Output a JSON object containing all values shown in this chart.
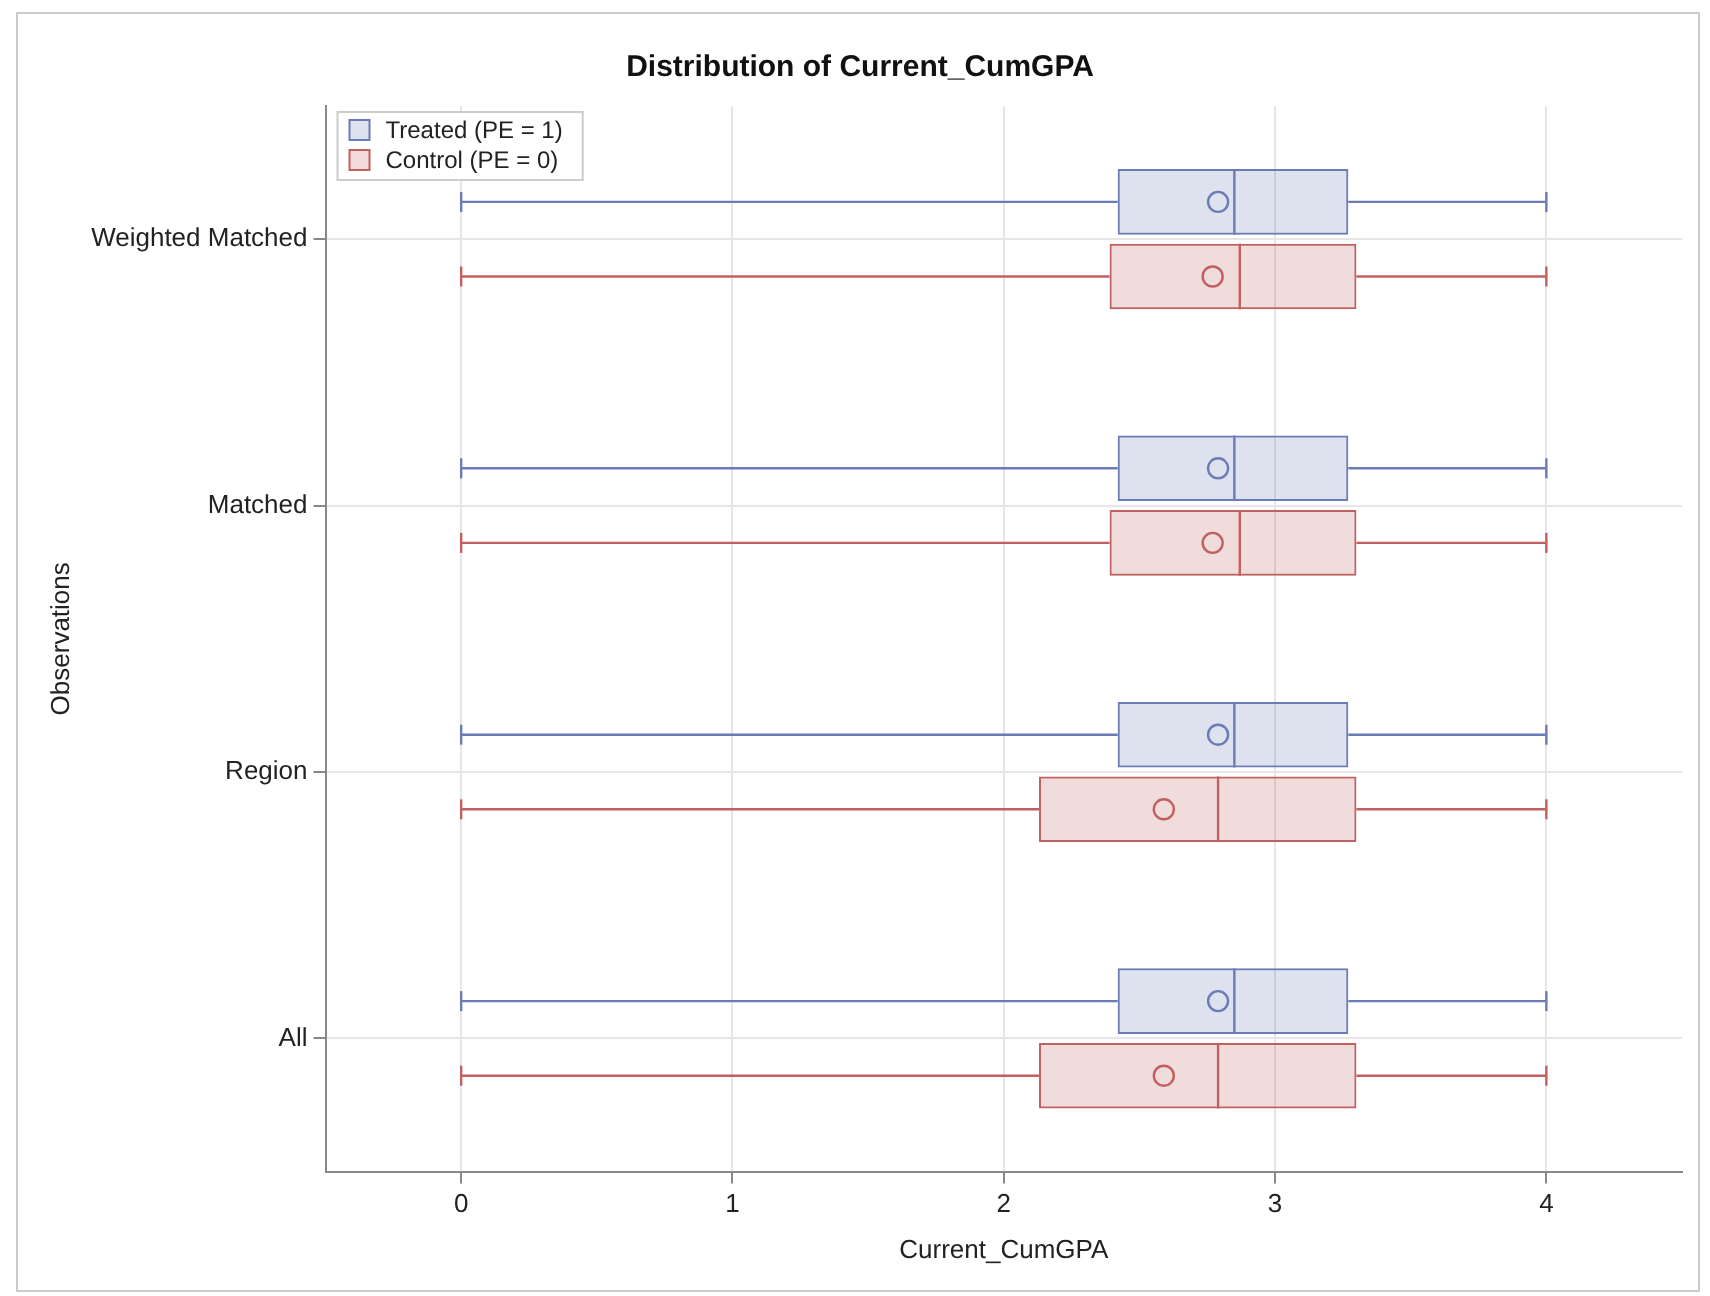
{
  "chart_data": {
    "type": "box",
    "orientation": "horizontal",
    "title": "Distribution of Current_CumGPA",
    "xlabel": "Current_CumGPA",
    "ylabel": "Observations",
    "categories": [
      "Weighted Matched",
      "Matched",
      "Region",
      "All"
    ],
    "series": [
      {
        "name": "Treated (PE = 1)",
        "color": "#6b7bb5",
        "boxes": [
          {
            "low": 0,
            "q1": 2.42,
            "median": 2.85,
            "q3": 3.27,
            "high": 4,
            "mean": 2.79
          },
          {
            "low": 0,
            "q1": 2.42,
            "median": 2.85,
            "q3": 3.27,
            "high": 4,
            "mean": 2.79
          },
          {
            "low": 0,
            "q1": 2.42,
            "median": 2.85,
            "q3": 3.27,
            "high": 4,
            "mean": 2.79
          },
          {
            "low": 0,
            "q1": 2.42,
            "median": 2.85,
            "q3": 3.27,
            "high": 4,
            "mean": 2.79
          }
        ]
      },
      {
        "name": "Control (PE = 0)",
        "color": "#c06060",
        "boxes": [
          {
            "low": 0,
            "q1": 2.39,
            "median": 2.87,
            "q3": 3.3,
            "high": 4,
            "mean": 2.77
          },
          {
            "low": 0,
            "q1": 2.39,
            "median": 2.87,
            "q3": 3.3,
            "high": 4,
            "mean": 2.77
          },
          {
            "low": 0,
            "q1": 2.13,
            "median": 2.79,
            "q3": 3.3,
            "high": 4,
            "mean": 2.59
          },
          {
            "low": 0,
            "q1": 2.13,
            "median": 2.79,
            "q3": 3.3,
            "high": 4,
            "mean": 2.59
          }
        ]
      }
    ],
    "xlim": [
      -0.5,
      4.5
    ],
    "xticks": [
      0,
      1,
      2,
      3,
      4
    ],
    "grid": true,
    "legend": "top left"
  }
}
